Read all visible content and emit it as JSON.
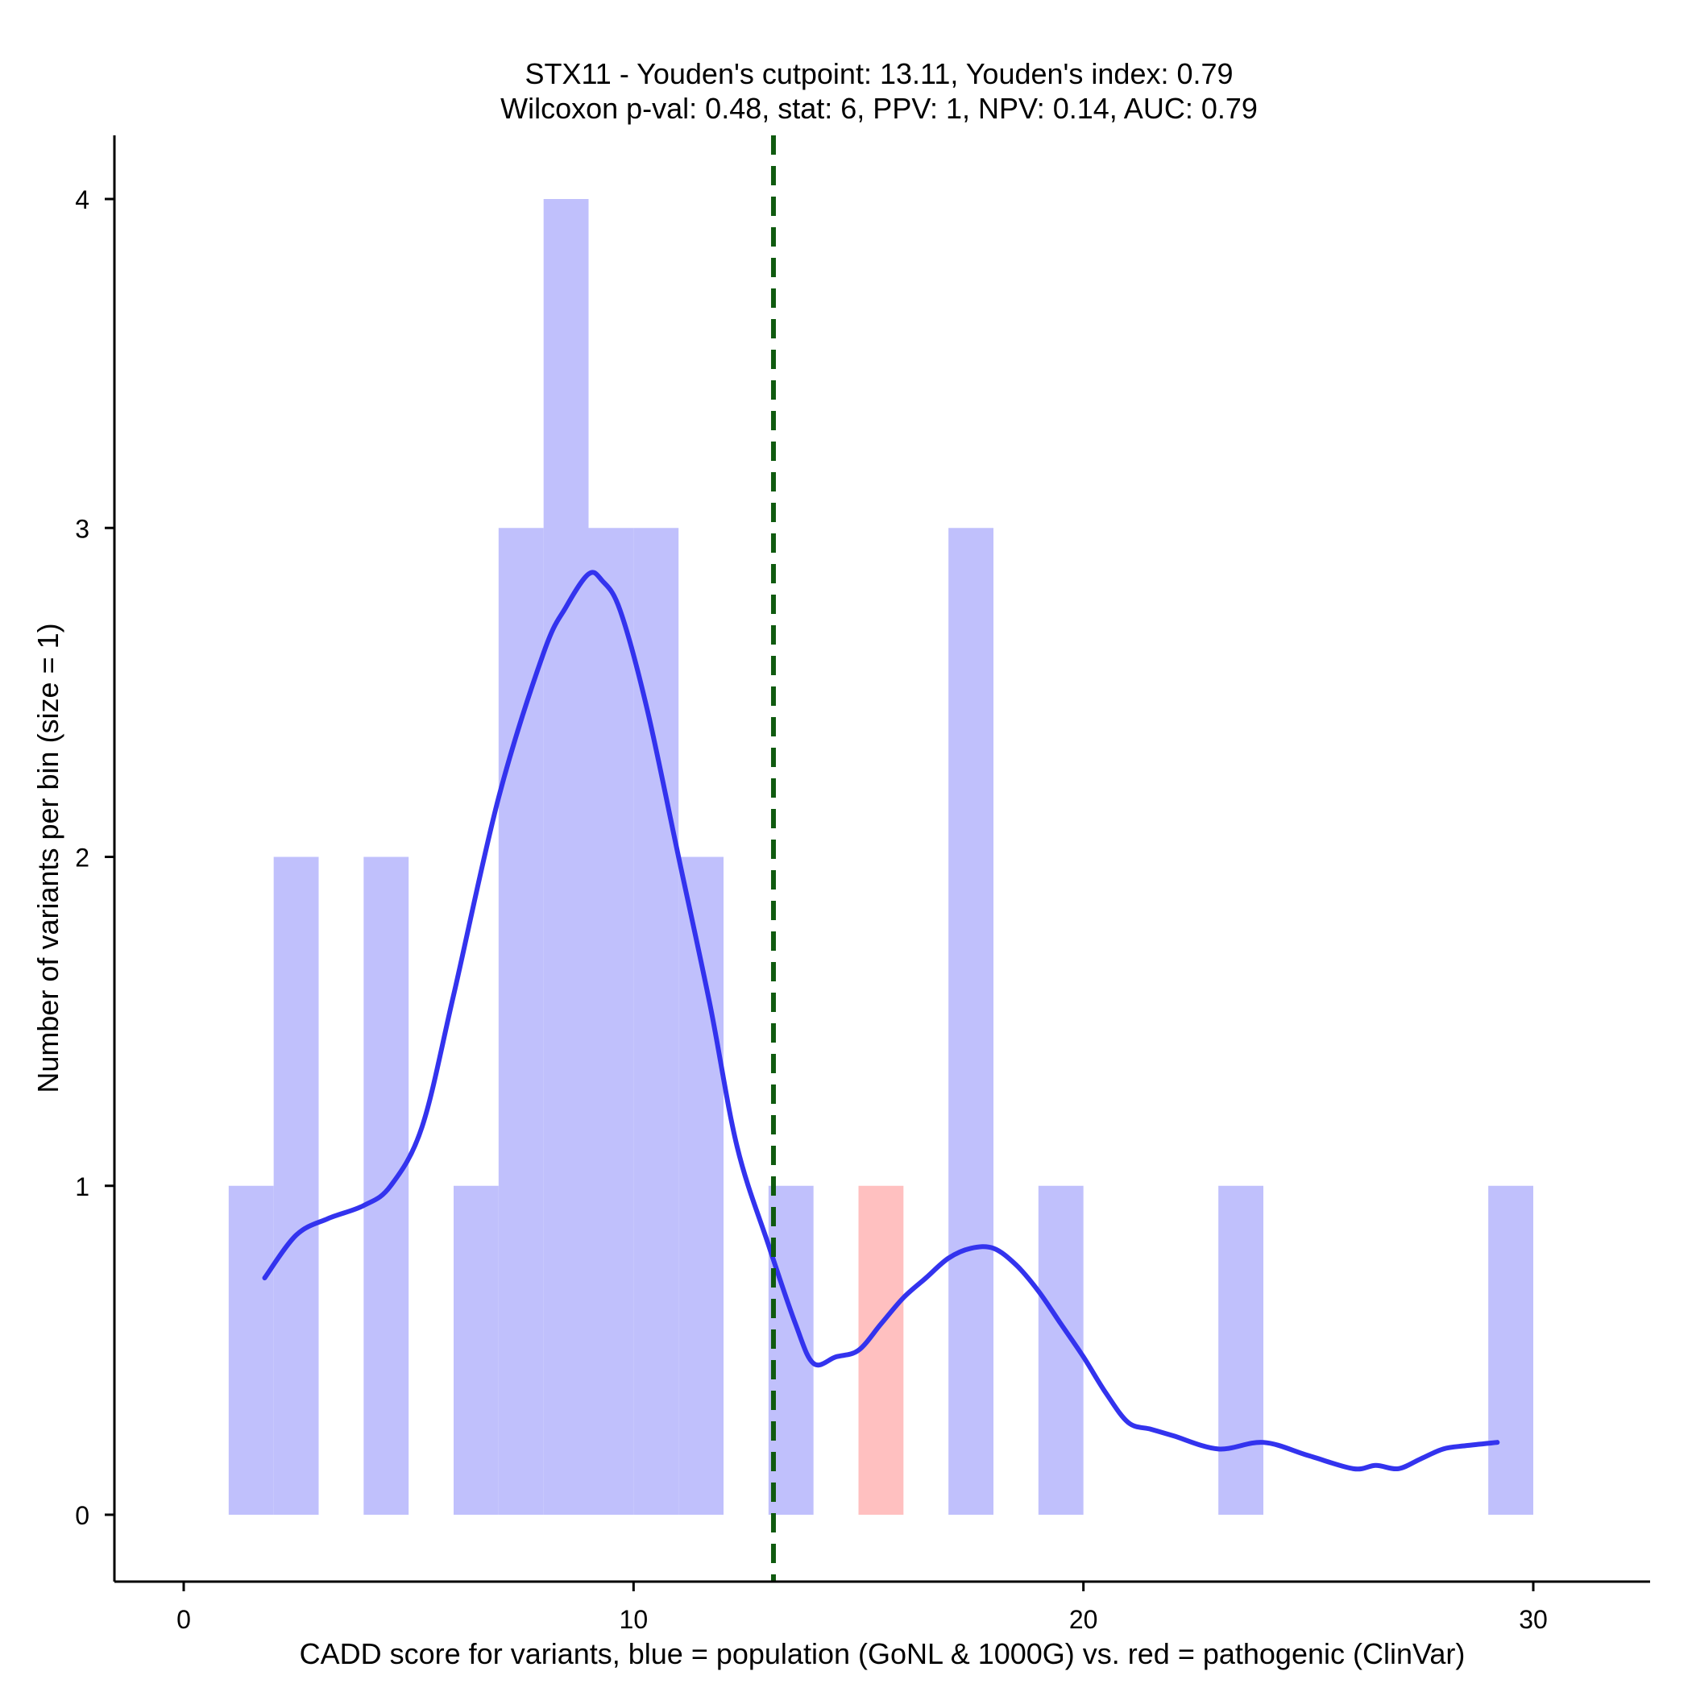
{
  "chart_data": {
    "type": "histogram",
    "title_lines": [
      "STX11 - Youden's cutpoint: 13.11, Youden's index: 0.79",
      "Wilcoxon p-val: 0.48, stat: 6, PPV: 1, NPV: 0.14, AUC: 0.79"
    ],
    "xlabel": "CADD score for variants, blue = population (GoNL & 1000G) vs. red = pathogenic (ClinVar)",
    "ylabel": "Number of variants per bin (size = 1)",
    "xlim": [
      -1.6,
      32.5
    ],
    "ylim": [
      -0.2,
      4.2
    ],
    "x_ticks": [
      0,
      10,
      20,
      30
    ],
    "x_tick_labels": [
      "0",
      "10",
      "20",
      "30"
    ],
    "y_ticks": [
      0,
      1,
      2,
      3,
      4
    ],
    "y_tick_labels": [
      "0",
      "1",
      "2",
      "3",
      "4"
    ],
    "bin_size": 1,
    "series": [
      {
        "name": "population (GoNL & 1000G)",
        "color": "#c0c0fc",
        "bins": [
          {
            "start": 1,
            "count": 1
          },
          {
            "start": 2,
            "count": 2
          },
          {
            "start": 4,
            "count": 2
          },
          {
            "start": 6,
            "count": 1
          },
          {
            "start": 7,
            "count": 3
          },
          {
            "start": 8,
            "count": 4
          },
          {
            "start": 9,
            "count": 3
          },
          {
            "start": 10,
            "count": 3
          },
          {
            "start": 11,
            "count": 2
          },
          {
            "start": 13,
            "count": 1
          },
          {
            "start": 17,
            "count": 3
          },
          {
            "start": 19,
            "count": 1
          },
          {
            "start": 23,
            "count": 1
          },
          {
            "start": 29,
            "count": 1
          }
        ]
      },
      {
        "name": "pathogenic (ClinVar)",
        "color": "#ffc0c0",
        "bins": [
          {
            "start": 15,
            "count": 1
          }
        ]
      }
    ],
    "density_curve": {
      "name": "population density",
      "color": "#3333ee",
      "x": [
        1.8,
        2.5,
        3.2,
        4.0,
        4.6,
        5.3,
        6.0,
        7.0,
        8.0,
        8.5,
        9.0,
        9.3,
        9.7,
        10.3,
        11.0,
        11.7,
        12.3,
        13.0,
        13.6,
        14.0,
        14.5,
        15.0,
        15.5,
        16.0,
        16.5,
        17.0,
        17.5,
        18.0,
        18.5,
        19.0,
        19.5,
        20.0,
        20.5,
        21.0,
        21.5,
        22.0,
        23.0,
        24.0,
        25.0,
        26.0,
        26.5,
        27.0,
        27.5,
        28.0,
        28.5,
        29.2
      ],
      "y": [
        0.72,
        0.85,
        0.9,
        0.94,
        1.0,
        1.18,
        1.58,
        2.18,
        2.62,
        2.76,
        2.86,
        2.84,
        2.75,
        2.45,
        2.0,
        1.55,
        1.12,
        0.82,
        0.58,
        0.46,
        0.48,
        0.5,
        0.58,
        0.66,
        0.72,
        0.78,
        0.81,
        0.81,
        0.76,
        0.68,
        0.58,
        0.48,
        0.37,
        0.28,
        0.26,
        0.24,
        0.2,
        0.22,
        0.18,
        0.14,
        0.15,
        0.14,
        0.17,
        0.2,
        0.21,
        0.22
      ]
    },
    "cutpoint": {
      "label": "Youden's cutpoint",
      "value": 13.11,
      "color": "#0f5a0f"
    }
  }
}
